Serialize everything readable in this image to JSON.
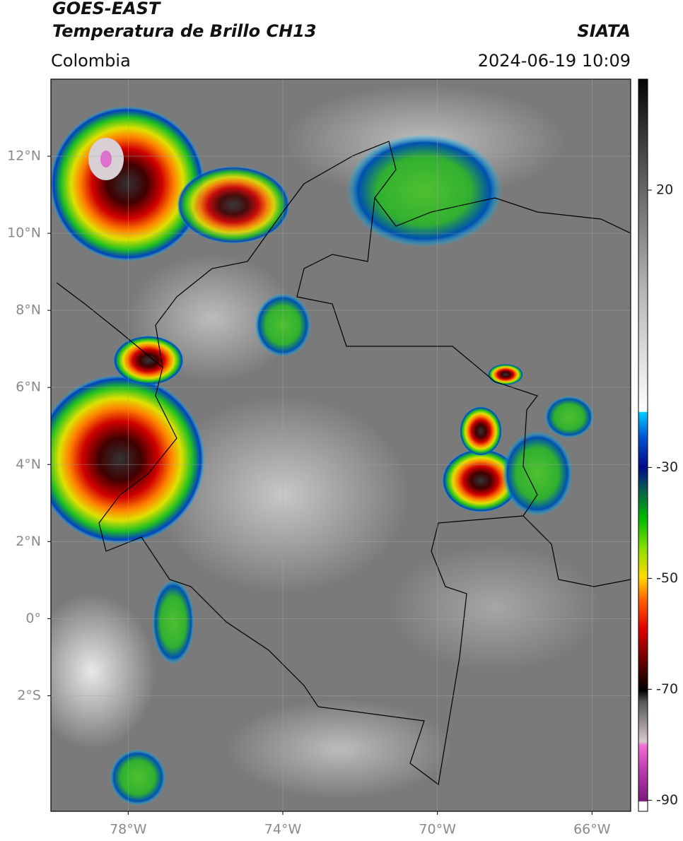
{
  "header": {
    "title": "GOES-EAST",
    "subtitle": "Temperatura de Brillo CH13",
    "region": "Colombia",
    "source": "SIATA",
    "datetime": "2024-06-19 10:09"
  },
  "map": {
    "xlim": [
      -80,
      -65
    ],
    "ylim": [
      -5,
      14
    ],
    "xticks": [
      {
        "value": -78,
        "label": "78°W"
      },
      {
        "value": -74,
        "label": "74°W"
      },
      {
        "value": -70,
        "label": "70°W"
      },
      {
        "value": -66,
        "label": "66°W"
      }
    ],
    "yticks": [
      {
        "value": 12,
        "label": "12°N"
      },
      {
        "value": 10,
        "label": "10°N"
      },
      {
        "value": 8,
        "label": "8°N"
      },
      {
        "value": 6,
        "label": "6°N"
      },
      {
        "value": 4,
        "label": "4°N"
      },
      {
        "value": 2,
        "label": "2°N"
      },
      {
        "value": 0,
        "label": "0°"
      },
      {
        "value": -2,
        "label": "2°S"
      }
    ],
    "grid": true
  },
  "colorbar": {
    "lim": [
      -92,
      40
    ],
    "ticks": [
      20,
      -30,
      -50,
      -70,
      -90
    ]
  }
}
